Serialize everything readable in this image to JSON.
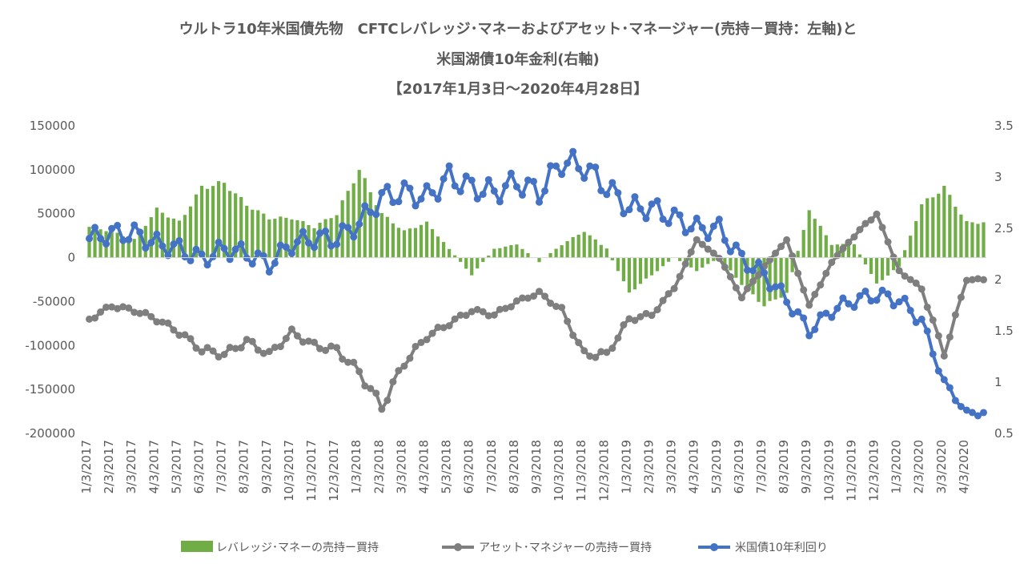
{
  "chart_data": {
    "type": "bar+line",
    "title_lines": [
      "ウルトラ10年米国債先物　CFTCレバレッジ･マネーおよびアセット･マネージャー(売持－買持：左軸)と",
      "米国湖債10年金利(右軸)",
      "【2017年1月3日～2020年4月28日】"
    ],
    "y_left": {
      "range": [
        -200000,
        150000
      ],
      "ticks": [
        "150000",
        "100000",
        "50000",
        "0",
        "-50000",
        "-100000",
        "-150000",
        "-200000"
      ]
    },
    "y_right": {
      "range": [
        0.5,
        3.5
      ],
      "ticks": [
        "3.5",
        "3",
        "2.5",
        "2",
        "1.5",
        "1",
        "0.5"
      ]
    },
    "x_labels": [
      "1/3/2017",
      "2/3/2017",
      "3/3/2017",
      "4/3/2017",
      "5/3/2017",
      "6/3/2017",
      "7/3/2017",
      "8/3/2017",
      "9/3/2017",
      "10/3/2017",
      "11/3/2017",
      "12/3/2017",
      "1/3/2018",
      "2/3/2018",
      "3/3/2018",
      "4/3/2018",
      "5/3/2018",
      "6/3/2018",
      "7/3/2018",
      "8/3/2018",
      "9/3/2018",
      "10/3/2018",
      "11/3/2018",
      "12/3/2018",
      "1/3/2019",
      "2/3/2019",
      "3/3/2019",
      "4/3/2019",
      "5/3/2019",
      "6/3/2019",
      "7/3/2019",
      "8/3/2019",
      "9/3/2019",
      "10/3/2019",
      "11/3/2019",
      "12/3/2019",
      "1/3/2020",
      "2/3/2020",
      "3/3/2020",
      "4/3/2020"
    ],
    "series": [
      {
        "name": "レバレッジ･マネーの売持ー買持",
        "type": "bar",
        "axis": "left",
        "color": "#70ad47",
        "monthly": [
          35000,
          30000,
          20000,
          55000,
          40000,
          80000,
          85000,
          60000,
          45000,
          45000,
          35000,
          50000,
          100000,
          50000,
          30000,
          40000,
          10000,
          -20000,
          10000,
          15000,
          -5000,
          15000,
          30000,
          10000,
          -40000,
          -20000,
          0,
          -15000,
          0,
          -30000,
          -55000,
          -40000,
          55000,
          15000,
          15000,
          -30000,
          -10000,
          60000,
          80000,
          40000
        ]
      },
      {
        "name": "アセット･マネジャーの売持ー買持",
        "type": "line",
        "axis": "left",
        "color": "#7f7f7f",
        "monthly": [
          -70000,
          -55000,
          -60000,
          -70000,
          -85000,
          -105000,
          -110000,
          -95000,
          -110000,
          -85000,
          -100000,
          -105000,
          -130000,
          -170000,
          -120000,
          -90000,
          -75000,
          -60000,
          -65000,
          -50000,
          -40000,
          -60000,
          -110000,
          -110000,
          -70000,
          -65000,
          -35000,
          20000,
          0,
          -45000,
          -10000,
          20000,
          -55000,
          -5000,
          25000,
          50000,
          -15000,
          -35000,
          -110000,
          -25000
        ]
      },
      {
        "name": "米国債10年利回り",
        "type": "line",
        "axis": "right",
        "color": "#4472c4",
        "monthly": [
          2.4,
          2.45,
          2.45,
          2.35,
          2.3,
          2.2,
          2.3,
          2.25,
          2.15,
          2.35,
          2.4,
          2.4,
          2.55,
          2.8,
          2.85,
          2.8,
          3.0,
          2.9,
          2.85,
          2.95,
          2.85,
          3.15,
          3.1,
          2.9,
          2.7,
          2.7,
          2.6,
          2.5,
          2.5,
          2.2,
          2.05,
          1.8,
          1.5,
          1.7,
          1.8,
          1.85,
          1.8,
          1.6,
          1.0,
          0.7
        ]
      }
    ],
    "legend": [
      "レバレッジ･マネーの売持ー買持",
      "アセット･マネジャーの売持ー買持",
      "米国債10年利回り"
    ]
  }
}
